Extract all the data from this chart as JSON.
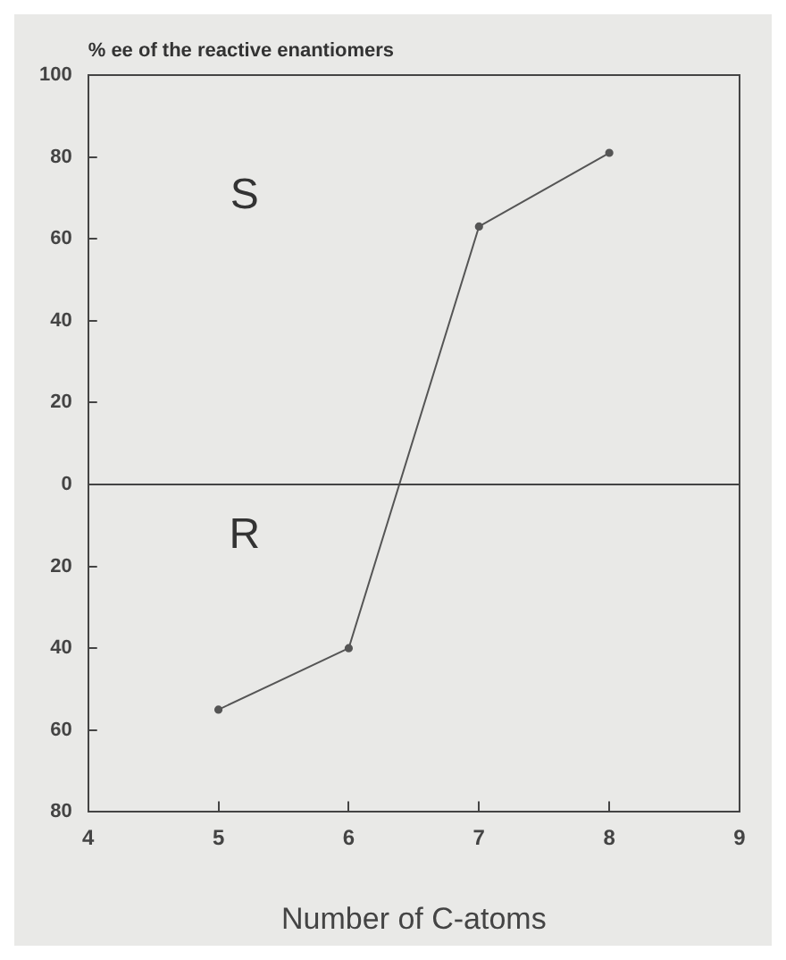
{
  "chart_data": {
    "type": "line",
    "ylabel": "% ee of the reactive enantiomers",
    "xlabel": "Number of C-atoms",
    "x": [
      5,
      6,
      7,
      8
    ],
    "series": [
      {
        "color": "#555555",
        "values": [
          -55,
          -40,
          63,
          81
        ]
      }
    ],
    "xlim": [
      4,
      9
    ],
    "xticks": [
      4,
      5,
      6,
      7,
      8,
      9
    ],
    "ylim": [
      -80,
      100
    ],
    "yticks": [
      {
        "value": -80,
        "label": "80"
      },
      {
        "value": -60,
        "label": "60"
      },
      {
        "value": -40,
        "label": "40"
      },
      {
        "value": -20,
        "label": "20"
      },
      0,
      20,
      40,
      60,
      80,
      100
    ],
    "ref_lines": [
      {
        "axis": "y",
        "value": 0,
        "color": "#444444"
      }
    ],
    "annotations": [
      "S",
      "R"
    ],
    "marker": "circle",
    "line_style": "solid",
    "grid": false,
    "legend": false
  }
}
